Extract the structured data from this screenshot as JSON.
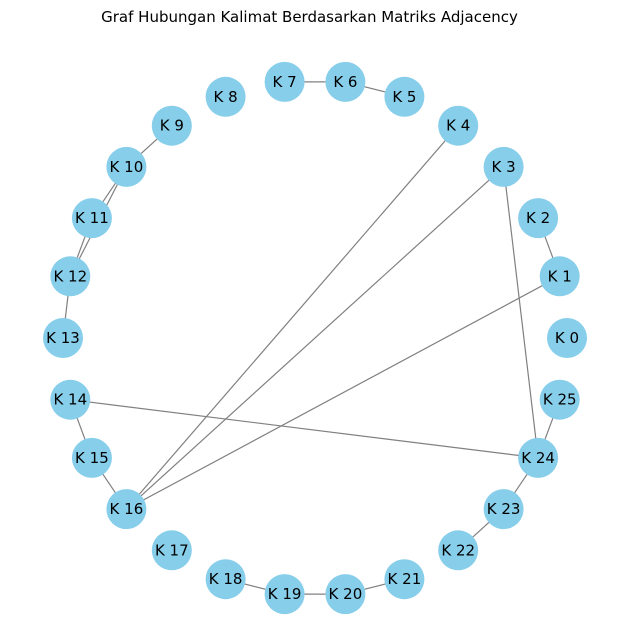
{
  "title": "Graf Hubungan Kalimat Berdasarkan Matriks Adjacency",
  "node_color": "#87ceeb",
  "edge_color": "#808080",
  "nodes": [
    "K 0",
    "K 1",
    "K 2",
    "K 3",
    "K 4",
    "K 5",
    "K 6",
    "K 7",
    "K 8",
    "K 9",
    "K 10",
    "K 11",
    "K 12",
    "K 13",
    "K 14",
    "K 15",
    "K 16",
    "K 17",
    "K 18",
    "K 19",
    "K 20",
    "K 21",
    "K 22",
    "K 23",
    "K 24",
    "K 25"
  ],
  "edges": [
    [
      1,
      2
    ],
    [
      1,
      16
    ],
    [
      3,
      16
    ],
    [
      3,
      24
    ],
    [
      4,
      16
    ],
    [
      5,
      6
    ],
    [
      6,
      7
    ],
    [
      9,
      10
    ],
    [
      10,
      11
    ],
    [
      10,
      12
    ],
    [
      11,
      12
    ],
    [
      12,
      13
    ],
    [
      14,
      15
    ],
    [
      15,
      16
    ],
    [
      14,
      24
    ],
    [
      18,
      19
    ],
    [
      19,
      20
    ],
    [
      20,
      21
    ],
    [
      22,
      23
    ],
    [
      23,
      24
    ],
    [
      24,
      25
    ]
  ]
}
